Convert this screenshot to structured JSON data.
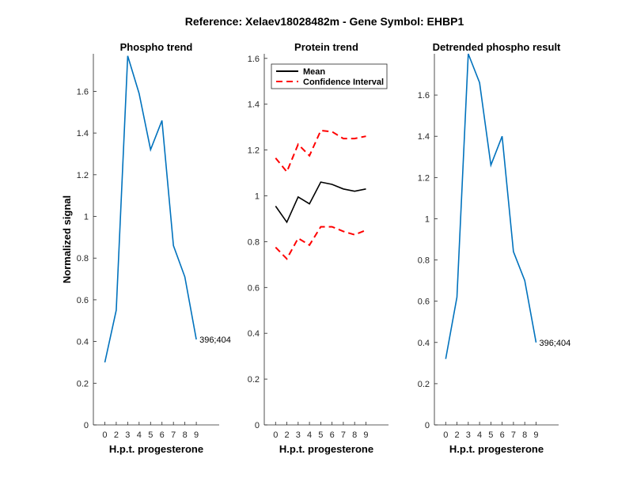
{
  "figure_title": "Reference:  Xelaev18028482m - Gene Symbol:  EHBP1",
  "chart_data": [
    {
      "type": "line",
      "title": "Phospho trend",
      "xlabel": "H.p.t. progesterone",
      "ylabel": "Normalized signal",
      "categories": [
        "0",
        "2",
        "3",
        "4",
        "5",
        "6",
        "7",
        "8",
        "9"
      ],
      "xlim": [
        -1,
        10
      ],
      "ylim": [
        0,
        1.78
      ],
      "yticks": [
        0,
        0.2,
        0.4,
        0.6,
        0.8,
        1,
        1.2,
        1.4,
        1.6
      ],
      "ytick_labels": [
        "0",
        "0.2",
        "0.4",
        "0.6",
        "0.8",
        "1",
        "1.2",
        "1.4",
        "1.6"
      ],
      "series": [
        {
          "name": "396;404",
          "color": "#0072bd",
          "style": "solid",
          "values": [
            0.3,
            0.55,
            1.77,
            1.59,
            1.32,
            1.46,
            0.86,
            0.71,
            0.41
          ]
        }
      ],
      "annotation": "396;404"
    },
    {
      "type": "line",
      "title": "Protein trend",
      "xlabel": "H.p.t. progesterone",
      "ylabel": "",
      "categories": [
        "0",
        "2",
        "3",
        "4",
        "5",
        "6",
        "7",
        "8",
        "9"
      ],
      "xlim": [
        -1,
        10
      ],
      "ylim": [
        0,
        1.62
      ],
      "yticks": [
        0,
        0.2,
        0.4,
        0.6,
        0.8,
        1,
        1.2,
        1.4,
        1.6
      ],
      "ytick_labels": [
        "0",
        "0.2",
        "0.4",
        "0.6",
        "0.8",
        "1",
        "1.2",
        "1.4",
        "1.6"
      ],
      "series": [
        {
          "name": "Mean",
          "color": "#000000",
          "style": "solid",
          "values": [
            0.955,
            0.885,
            0.995,
            0.965,
            1.06,
            1.05,
            1.03,
            1.02,
            1.03
          ]
        },
        {
          "name": "Confidence Interval",
          "color": "#ff0000",
          "style": "dashed",
          "values": [
            1.165,
            1.105,
            1.225,
            1.175,
            1.285,
            1.28,
            1.25,
            1.25,
            1.26
          ]
        },
        {
          "name": "Confidence Interval",
          "color": "#ff0000",
          "style": "dashed",
          "legend": false,
          "values": [
            0.775,
            0.725,
            0.815,
            0.785,
            0.865,
            0.865,
            0.845,
            0.83,
            0.85
          ]
        }
      ],
      "legend_entries": [
        "Mean",
        "Confidence Interval"
      ],
      "legend_position": "top-left"
    },
    {
      "type": "line",
      "title": "Detrended phospho result",
      "xlabel": "H.p.t. progesterone",
      "ylabel": "",
      "categories": [
        "0",
        "2",
        "3",
        "4",
        "5",
        "6",
        "7",
        "8",
        "9"
      ],
      "xlim": [
        -1,
        10
      ],
      "ylim": [
        0,
        1.8
      ],
      "yticks": [
        0,
        0.2,
        0.4,
        0.6,
        0.8,
        1,
        1.2,
        1.4,
        1.6
      ],
      "ytick_labels": [
        "0",
        "0.2",
        "0.4",
        "0.6",
        "0.8",
        "1",
        "1.2",
        "1.4",
        "1.6"
      ],
      "series": [
        {
          "name": "396;404",
          "color": "#0072bd",
          "style": "solid",
          "values": [
            0.32,
            0.62,
            1.8,
            1.66,
            1.26,
            1.4,
            0.84,
            0.7,
            0.4
          ]
        }
      ],
      "annotation": "396;404"
    }
  ]
}
